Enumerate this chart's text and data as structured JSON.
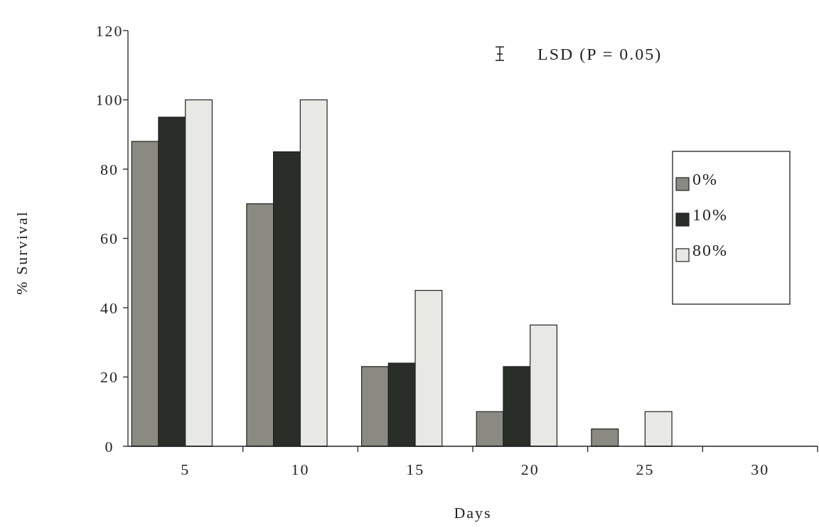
{
  "chart_data": {
    "type": "bar",
    "xlabel": "Days",
    "ylabel": "% Survival",
    "categories": [
      "5",
      "10",
      "15",
      "20",
      "25",
      "30"
    ],
    "series": [
      {
        "name": "0%",
        "color": "#8a8a82",
        "values": [
          88,
          70,
          23,
          10,
          5,
          0
        ]
      },
      {
        "name": "10%",
        "color": "#2a2e28",
        "values": [
          95,
          85,
          24,
          23,
          0,
          0
        ]
      },
      {
        "name": "80%",
        "color": "#e8e8e4",
        "values": [
          100,
          100,
          45,
          35,
          10,
          0
        ]
      }
    ],
    "ylim": [
      0,
      120
    ],
    "yticks": [
      0,
      20,
      40,
      60,
      80,
      100,
      120
    ],
    "annotations": [
      "LSD (P = 0.05)"
    ],
    "legend": "right",
    "grid": false
  }
}
